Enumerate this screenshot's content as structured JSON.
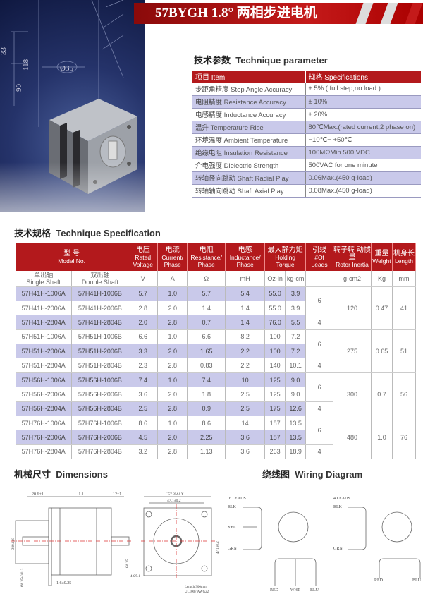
{
  "banner": {
    "title": "57BYGH 1.8°  两相步进电机"
  },
  "hero": {
    "dims": [
      "33",
      "118",
      "90",
      "Ø35"
    ]
  },
  "params": {
    "heading_zh": "技术参数",
    "heading_en": "Technique parameter",
    "header": {
      "item": "项目  Item",
      "spec": "规格  Specifications"
    },
    "rows": [
      {
        "zh": "步距角精度",
        "en": "Step Angle Accuracy",
        "value": "± 5% ( full step,no load )"
      },
      {
        "zh": "电阻精度",
        "en": "Resistance Accuracy",
        "value": "± 10%"
      },
      {
        "zh": "电感精度",
        "en": "Inductance Accuracy",
        "value": "± 20%"
      },
      {
        "zh": "温升",
        "en": "Temperature Rise",
        "value": "80℃Max.(rated current,2 phase on)"
      },
      {
        "zh": "环境温度",
        "en": "Ambient Temperature",
        "value": "−10℃− +50℃"
      },
      {
        "zh": "绝缘电阻",
        "en": "Insulation Resistance",
        "value": "100MΩMin.500 VDC"
      },
      {
        "zh": "介电强度",
        "en": "Dielectric Strength",
        "value": "500VAC for one minute"
      },
      {
        "zh": "转轴径向跳动",
        "en": "Shaft Radial Play",
        "value": "0.06Max.(450 g-load)"
      },
      {
        "zh": "转轴轴向跳动",
        "en": "Shaft Axial Play",
        "value": "0.08Max.(450 g-load)"
      }
    ]
  },
  "spec": {
    "heading_zh": "技术规格",
    "heading_en": "Technique Specification",
    "headers": {
      "model": {
        "zh": "型   号",
        "en": "Model No."
      },
      "voltage": {
        "zh": "电压",
        "en": "Rated Voltage"
      },
      "current": {
        "zh": "电流",
        "en": "Current/ Phase"
      },
      "resistance": {
        "zh": "电阻",
        "en": "Resistance/ Phase"
      },
      "inductance": {
        "zh": "电感",
        "en": "Inductance/ Phase"
      },
      "torque": {
        "zh": "最大静力矩",
        "en": "Holding Torque"
      },
      "leads": {
        "zh": "引线",
        "en": "#Of Leads"
      },
      "inertia": {
        "zh": "转子转 动惯量",
        "en": "Rotor Inertia"
      },
      "weight": {
        "zh": "重量",
        "en": "Weight"
      },
      "length": {
        "zh": "机身长",
        "en": "Length"
      }
    },
    "units": {
      "single_zh": "单出轴",
      "single_en": "Single Shaft",
      "double_zh": "双出轴",
      "double_en": "Double Shaft",
      "v": "V",
      "a": "A",
      "ohm": "Ω",
      "mh": "mH",
      "ozin": "Oz-in",
      "kgcm": "kg-cm",
      "inertia": "g-cm2",
      "weight": "Kg",
      "length": "mm"
    },
    "groups": [
      {
        "inertia": "120",
        "weight": "0.47",
        "length": "41",
        "rows": [
          [
            "57H41H-1006A",
            "57H41H-1006B",
            "5.7",
            "1.0",
            "5.7",
            "5.4",
            "55.0",
            "3.9",
            "6"
          ],
          [
            "57H41H-2006A",
            "57H41H-2006B",
            "2.8",
            "2.0",
            "1.4",
            "1.4",
            "55.0",
            "3.9",
            ""
          ],
          [
            "57H41H-2804A",
            "57H41H-2804B",
            "2.0",
            "2.8",
            "0.7",
            "1.4",
            "76.0",
            "5.5",
            "4"
          ]
        ]
      },
      {
        "inertia": "275",
        "weight": "0.65",
        "length": "51",
        "rows": [
          [
            "57H51H-1006A",
            "57H51H-1006B",
            "6.6",
            "1.0",
            "6.6",
            "8.2",
            "100",
            "7.2",
            "6"
          ],
          [
            "57H51H-2006A",
            "57H51H-2006B",
            "3.3",
            "2.0",
            "1.65",
            "2.2",
            "100",
            "7.2",
            ""
          ],
          [
            "57H51H-2804A",
            "57H51H-2804B",
            "2.3",
            "2.8",
            "0.83",
            "2.2",
            "140",
            "10.1",
            "4"
          ]
        ]
      },
      {
        "inertia": "300",
        "weight": "0.7",
        "length": "56",
        "rows": [
          [
            "57H56H-1006A",
            "57H56H-1006B",
            "7.4",
            "1.0",
            "7.4",
            "10",
            "125",
            "9.0",
            "6"
          ],
          [
            "57H56H-2006A",
            "57H56H-2006B",
            "3.6",
            "2.0",
            "1.8",
            "2.5",
            "125",
            "9.0",
            ""
          ],
          [
            "57H56H-2804A",
            "57H56H-2804B",
            "2.5",
            "2.8",
            "0.9",
            "2.5",
            "175",
            "12.6",
            "4"
          ]
        ]
      },
      {
        "inertia": "480",
        "weight": "1.0",
        "length": "76",
        "rows": [
          [
            "57H76H-1006A",
            "57H76H-1006B",
            "8.6",
            "1.0",
            "8.6",
            "14",
            "187",
            "13.5",
            "6"
          ],
          [
            "57H76H-2006A",
            "57H76H-2006B",
            "4.5",
            "2.0",
            "2.25",
            "3.6",
            "187",
            "13.5",
            ""
          ],
          [
            "57H76H-2804A",
            "57H76H-2804B",
            "3.2",
            "2.8",
            "1.13",
            "3.6",
            "263",
            "18.9",
            "4"
          ]
        ]
      }
    ]
  },
  "dimensions": {
    "heading_zh": "机械尺寸",
    "heading_en": "Dimensions",
    "labels": {
      "shaft": "20.6±1",
      "l1": "L1",
      "rear": "12±1",
      "boss": "Ø38.1±0",
      "shaft_d": "Ø6.35±0.013",
      "rear_d": "Ø6.35",
      "flange": "1.6±0.25",
      "body": "□57.3MAX",
      "holes": "47.1±0.2",
      "hole_d": "4-Ø5.1",
      "side": "47.1±0.2",
      "wire1": "Length 300mm",
      "wire2": "UL1007 AWG22"
    }
  },
  "wiring": {
    "heading_zh": "绕线图",
    "heading_en": "Wiring Diagram",
    "six": {
      "title": "6 LEADS",
      "blk": "BLK",
      "yel": "YEL",
      "grn": "GRN",
      "red": "RED",
      "wht": "WHT",
      "blu": "BLU"
    },
    "four": {
      "title": "4 LEADS",
      "blk": "BLK",
      "grn": "GRN",
      "red": "RED",
      "blu": "BLU"
    }
  },
  "colors": {
    "brand_red": "#b3191c",
    "row_shade": "#c9c9ea"
  }
}
